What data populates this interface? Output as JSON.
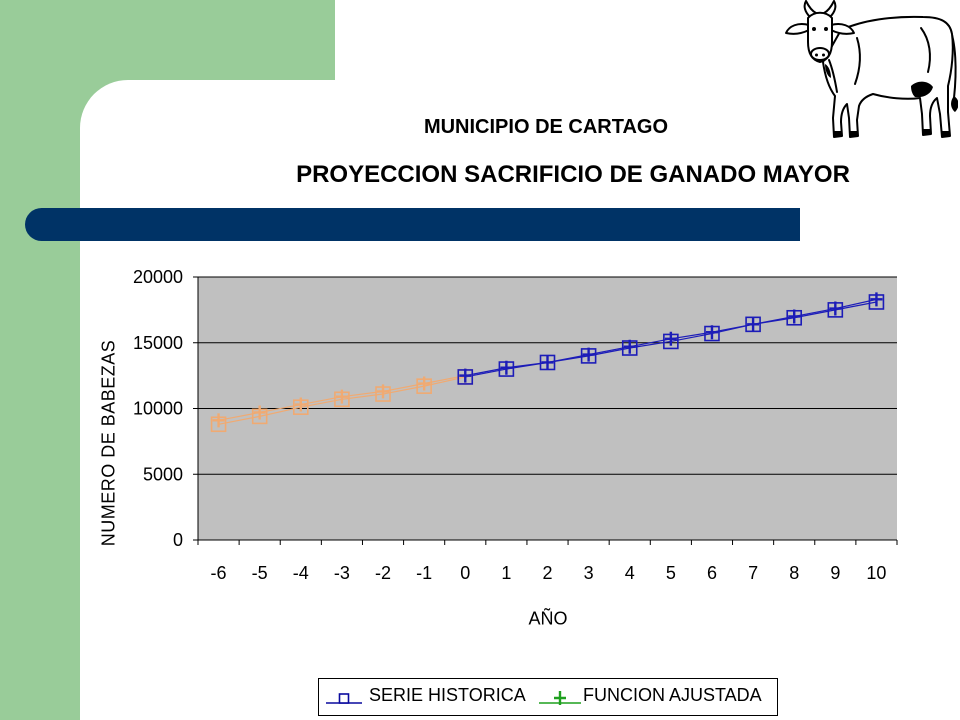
{
  "slide": {
    "green_color": "#99cc99",
    "bar_color": "#003366",
    "illustration_icon": "cow-illustration"
  },
  "chart_data": {
    "type": "line",
    "subtitle": "MUNICIPIO DE CARTAGO",
    "title": "PROYECCION SACRIFICIO DE GANADO MAYOR",
    "xlabel": "AÑO",
    "ylabel": "NUMERO DE BABEZAS",
    "x": [
      -6,
      -5,
      -4,
      -3,
      -2,
      -1,
      0,
      1,
      2,
      3,
      4,
      5,
      6,
      7,
      8,
      9,
      10
    ],
    "ylim": [
      0,
      20000
    ],
    "yticks": [
      0,
      5000,
      10000,
      15000,
      20000
    ],
    "grid": true,
    "legend": "bottom",
    "plot_background": "#c0c0c0",
    "series": [
      {
        "name": "SERIE HISTORICA",
        "marker": "square",
        "legend_color": "#0a0a9e",
        "values": [
          8800,
          9400,
          10100,
          10700,
          11100,
          11700,
          12400,
          13000,
          13500,
          14000,
          14600,
          15100,
          15700,
          16400,
          16900,
          17500,
          18100
        ]
      },
      {
        "name": "FUNCION AJUSTADA",
        "marker": "plus",
        "legend_color": "#1fa01f",
        "values": [
          9100,
          9700,
          10300,
          10900,
          11300,
          11900,
          12500,
          13100,
          13500,
          14100,
          14700,
          15300,
          15800,
          16400,
          17000,
          17600,
          18300
        ]
      }
    ],
    "segment_colors": [
      {
        "x_from": -6,
        "x_to": 0,
        "color": "#f0aa72"
      },
      {
        "x_from": 0,
        "x_to": 10,
        "color": "#1c1cb8"
      }
    ]
  }
}
